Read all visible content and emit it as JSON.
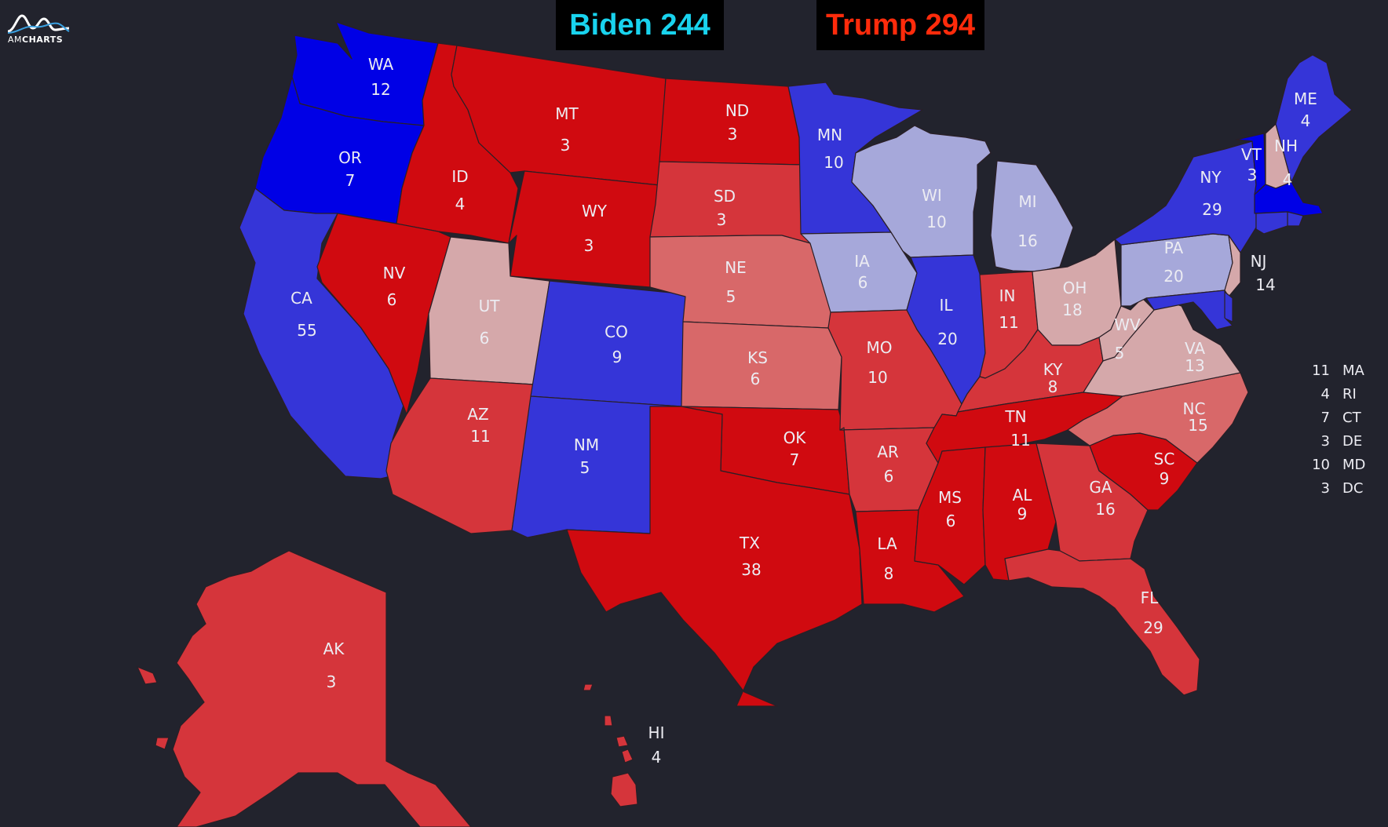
{
  "logo": {
    "brand_light": "AM",
    "brand_bold": "CHARTS",
    "icon": "amcharts-logo-icon"
  },
  "score": {
    "biden": "Biden 244",
    "trump": "Trump 294"
  },
  "colors": {
    "background": "#22232d",
    "dem_solid": "#0000e6",
    "dem_likely": "#3535d8",
    "dem_lean": "#a6a8da",
    "rep_solid": "#d00a10",
    "rep_likely": "#d5353b",
    "rep_lean_strong": "#d86869",
    "rep_lean": "#d5a8aa"
  },
  "small_states": [
    {
      "ev": "11",
      "abbr": "MA"
    },
    {
      "ev": "4",
      "abbr": "RI"
    },
    {
      "ev": "7",
      "abbr": "CT"
    },
    {
      "ev": "3",
      "abbr": "DE"
    },
    {
      "ev": "10",
      "abbr": "MD"
    },
    {
      "ev": "3",
      "abbr": "DC"
    }
  ],
  "states": [
    {
      "abbr": "WA",
      "ev": "12",
      "rating": "dem_solid"
    },
    {
      "abbr": "OR",
      "ev": "7",
      "rating": "dem_solid"
    },
    {
      "abbr": "CA",
      "ev": "55",
      "rating": "dem_likely"
    },
    {
      "abbr": "ID",
      "ev": "4",
      "rating": "rep_solid"
    },
    {
      "abbr": "NV",
      "ev": "6",
      "rating": "rep_solid"
    },
    {
      "abbr": "MT",
      "ev": "3",
      "rating": "rep_solid"
    },
    {
      "abbr": "WY",
      "ev": "3",
      "rating": "rep_solid"
    },
    {
      "abbr": "UT",
      "ev": "6",
      "rating": "rep_lean"
    },
    {
      "abbr": "AZ",
      "ev": "11",
      "rating": "rep_likely"
    },
    {
      "abbr": "CO",
      "ev": "9",
      "rating": "dem_likely"
    },
    {
      "abbr": "NM",
      "ev": "5",
      "rating": "dem_likely"
    },
    {
      "abbr": "ND",
      "ev": "3",
      "rating": "rep_solid"
    },
    {
      "abbr": "SD",
      "ev": "3",
      "rating": "rep_likely"
    },
    {
      "abbr": "NE",
      "ev": "5",
      "rating": "rep_lean_strong"
    },
    {
      "abbr": "KS",
      "ev": "6",
      "rating": "rep_lean_strong"
    },
    {
      "abbr": "OK",
      "ev": "7",
      "rating": "rep_solid"
    },
    {
      "abbr": "TX",
      "ev": "38",
      "rating": "rep_solid"
    },
    {
      "abbr": "MN",
      "ev": "10",
      "rating": "dem_likely"
    },
    {
      "abbr": "IA",
      "ev": "6",
      "rating": "dem_lean"
    },
    {
      "abbr": "MO",
      "ev": "10",
      "rating": "rep_likely"
    },
    {
      "abbr": "AR",
      "ev": "6",
      "rating": "rep_likely"
    },
    {
      "abbr": "LA",
      "ev": "8",
      "rating": "rep_solid"
    },
    {
      "abbr": "WI",
      "ev": "10",
      "rating": "dem_lean"
    },
    {
      "abbr": "IL",
      "ev": "20",
      "rating": "dem_likely"
    },
    {
      "abbr": "MI",
      "ev": "16",
      "rating": "dem_lean"
    },
    {
      "abbr": "IN",
      "ev": "11",
      "rating": "rep_likely"
    },
    {
      "abbr": "OH",
      "ev": "18",
      "rating": "rep_lean"
    },
    {
      "abbr": "KY",
      "ev": "8",
      "rating": "rep_likely"
    },
    {
      "abbr": "TN",
      "ev": "11",
      "rating": "rep_solid"
    },
    {
      "abbr": "MS",
      "ev": "6",
      "rating": "rep_solid"
    },
    {
      "abbr": "AL",
      "ev": "9",
      "rating": "rep_solid"
    },
    {
      "abbr": "GA",
      "ev": "16",
      "rating": "rep_likely"
    },
    {
      "abbr": "FL",
      "ev": "29",
      "rating": "rep_likely"
    },
    {
      "abbr": "SC",
      "ev": "9",
      "rating": "rep_solid"
    },
    {
      "abbr": "NC",
      "ev": "15",
      "rating": "rep_lean_strong"
    },
    {
      "abbr": "VA",
      "ev": "13",
      "rating": "rep_lean"
    },
    {
      "abbr": "WV",
      "ev": "5",
      "rating": "rep_lean"
    },
    {
      "abbr": "PA",
      "ev": "20",
      "rating": "dem_lean"
    },
    {
      "abbr": "NY",
      "ev": "29",
      "rating": "dem_likely"
    },
    {
      "abbr": "NJ",
      "ev": "14",
      "rating": "rep_lean"
    },
    {
      "abbr": "VT",
      "ev": "3",
      "rating": "dem_solid"
    },
    {
      "abbr": "NH",
      "ev": "4",
      "rating": "rep_lean"
    },
    {
      "abbr": "ME",
      "ev": "4",
      "rating": "dem_likely"
    },
    {
      "abbr": "MA",
      "ev": "11",
      "rating": "dem_solid"
    },
    {
      "abbr": "RI",
      "ev": "4",
      "rating": "dem_likely"
    },
    {
      "abbr": "CT",
      "ev": "7",
      "rating": "dem_likely"
    },
    {
      "abbr": "DE",
      "ev": "3",
      "rating": "dem_likely"
    },
    {
      "abbr": "MD",
      "ev": "10",
      "rating": "dem_likely"
    },
    {
      "abbr": "AK",
      "ev": "3",
      "rating": "rep_likely"
    },
    {
      "abbr": "HI",
      "ev": "4",
      "rating": "rep_likely"
    }
  ]
}
